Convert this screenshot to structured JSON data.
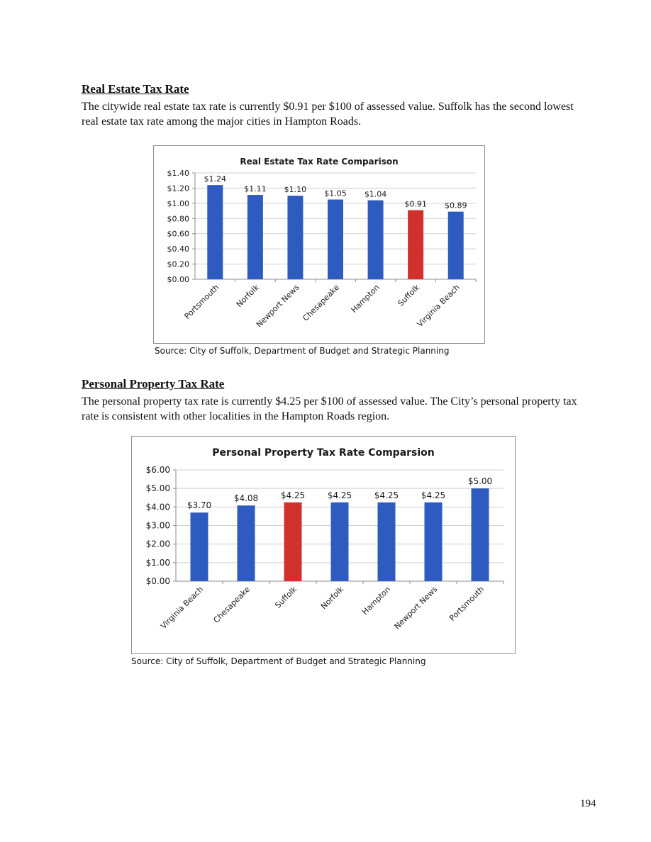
{
  "sections": [
    {
      "heading": "Real Estate Tax Rate",
      "body": "The citywide real estate tax rate is currently $0.91 per $100 of assessed value. Suffolk has the second lowest real estate tax rate among the major cities in Hampton Roads.",
      "source": "Source: City of Suffolk, Department of Budget and Strategic Planning"
    },
    {
      "heading": "Personal Property Tax Rate",
      "body": "The personal property tax rate is currently $4.25 per $100 of assessed value. The City’s personal property tax rate is consistent with other localities in the Hampton Roads region.",
      "source": "Source: City of Suffolk, Department of Budget and Strategic Planning"
    }
  ],
  "page_number": "194",
  "colors": {
    "bar": "#2e5bbf",
    "highlight": "#d0312d",
    "grid": "#cfcfcf",
    "axis": "#8c8c8c"
  },
  "chart_data": [
    {
      "type": "bar",
      "title": "Real Estate Tax Rate Comparison",
      "xlabel": "",
      "ylabel": "",
      "categories": [
        "Portsmouth",
        "Norfolk",
        "Newport News",
        "Chesapeake",
        "Hampton",
        "Suffolk",
        "Virginia Beach"
      ],
      "values": [
        1.24,
        1.11,
        1.1,
        1.05,
        1.04,
        0.91,
        0.89
      ],
      "data_labels": [
        "$1.24",
        "$1.11",
        "$1.10",
        "$1.05",
        "$1.04",
        "$0.91",
        "$0.89"
      ],
      "highlight_category": "Suffolk",
      "ylim": [
        0,
        1.4
      ],
      "yticks": [
        0,
        0.2,
        0.4,
        0.6,
        0.8,
        1.0,
        1.2,
        1.4
      ],
      "ytick_labels": [
        "$0.00",
        "$0.20",
        "$0.40",
        "$0.60",
        "$0.80",
        "$1.00",
        "$1.20",
        "$1.40"
      ],
      "grid": true,
      "legend": "none"
    },
    {
      "type": "bar",
      "title": "Personal Property Tax Rate Comparsion",
      "xlabel": "",
      "ylabel": "",
      "categories": [
        "Virginia Beach",
        "Chesapeake",
        "Suffolk",
        "Norfolk",
        "Hampton",
        "Newport News",
        "Portsmouth"
      ],
      "values": [
        3.7,
        4.08,
        4.25,
        4.25,
        4.25,
        4.25,
        5.0
      ],
      "data_labels": [
        "$3.70",
        "$4.08",
        "$4.25",
        "$4.25",
        "$4.25",
        "$4.25",
        "$5.00"
      ],
      "highlight_category": "Suffolk",
      "ylim": [
        0,
        6
      ],
      "yticks": [
        0,
        1,
        2,
        3,
        4,
        5,
        6
      ],
      "ytick_labels": [
        "$0.00",
        "$1.00",
        "$2.00",
        "$3.00",
        "$4.00",
        "$5.00",
        "$6.00"
      ],
      "grid": true,
      "legend": "none"
    }
  ]
}
